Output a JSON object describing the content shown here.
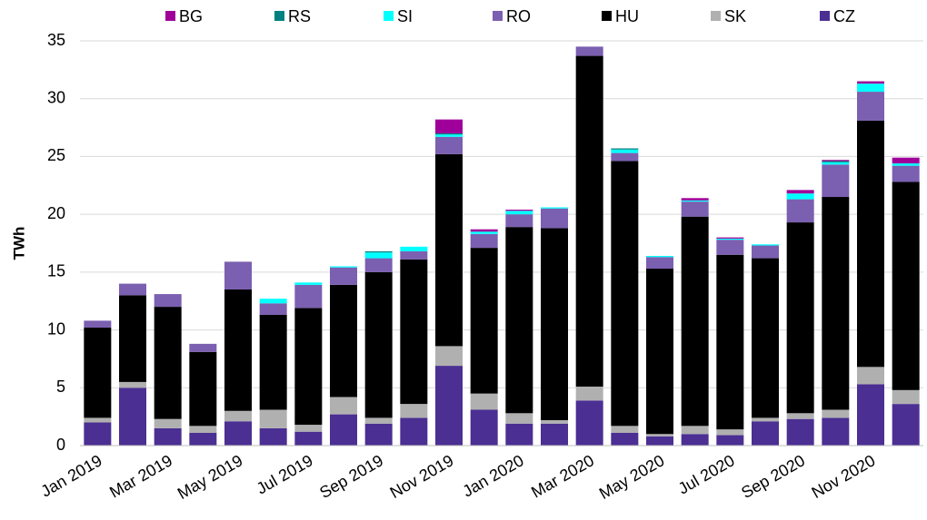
{
  "chart_data": {
    "type": "stacked_bar",
    "y_label": "TWh",
    "categories": [
      "Jan 2019",
      null,
      "Mar 2019",
      null,
      "May 2019",
      null,
      "Jul 2019",
      null,
      "Sep 2019",
      null,
      "Nov 2019",
      null,
      "Jan 2020",
      null,
      "Mar 2020",
      null,
      "May 2020",
      null,
      "Jul 2020",
      null,
      "Sep 2020",
      null,
      "Nov 2020",
      null
    ],
    "series": [
      {
        "name": "BG",
        "color": "#a0009a",
        "values": [
          0,
          0,
          0,
          0,
          0,
          0,
          0,
          0,
          0,
          0,
          1.2,
          0.2,
          0.1,
          0,
          0,
          0,
          0,
          0.2,
          0.1,
          0,
          0.3,
          0.1,
          0.2,
          0.5
        ]
      },
      {
        "name": "RS",
        "color": "#008080",
        "values": [
          0,
          0,
          0,
          0,
          0,
          0,
          0,
          0,
          0.1,
          0,
          0.1,
          0,
          0,
          0,
          0,
          0.1,
          0,
          0,
          0,
          0,
          0,
          0.1,
          0,
          0
        ]
      },
      {
        "name": "SI",
        "color": "#00ffff",
        "values": [
          0,
          0,
          0,
          0,
          0,
          0.4,
          0.2,
          0.1,
          0.5,
          0.4,
          0.2,
          0.2,
          0.3,
          0.1,
          0,
          0.3,
          0.1,
          0.1,
          0.1,
          0.1,
          0.5,
          0.2,
          0.7,
          0.2
        ]
      },
      {
        "name": "RO",
        "color": "#7b5fb0",
        "values": [
          0.6,
          1.0,
          1.1,
          0.7,
          2.4,
          1.0,
          2.0,
          1.5,
          1.2,
          0.7,
          1.5,
          1.2,
          1.1,
          1.7,
          0.8,
          0.7,
          1.0,
          1.3,
          1.3,
          1.1,
          2.0,
          2.8,
          2.5,
          1.4
        ]
      },
      {
        "name": "HU",
        "color": "#000000",
        "values": [
          7.8,
          7.5,
          9.7,
          6.4,
          10.5,
          8.2,
          10.1,
          9.7,
          12.6,
          12.5,
          16.6,
          12.6,
          16.1,
          16.6,
          28.6,
          22.9,
          14.3,
          18.1,
          15.1,
          13.8,
          16.5,
          18.4,
          21.3,
          18.0
        ]
      },
      {
        "name": "SK",
        "color": "#b0b0b0",
        "values": [
          0.4,
          0.5,
          0.8,
          0.6,
          0.9,
          1.6,
          0.6,
          1.5,
          0.5,
          1.2,
          1.7,
          1.4,
          0.9,
          0.3,
          1.2,
          0.6,
          0.2,
          0.7,
          0.5,
          0.3,
          0.5,
          0.7,
          1.5,
          1.2
        ]
      },
      {
        "name": "CZ",
        "color": "#4b2f93",
        "values": [
          2.0,
          5.0,
          1.5,
          1.1,
          2.1,
          1.5,
          1.2,
          2.7,
          1.9,
          2.4,
          6.9,
          3.1,
          1.9,
          1.9,
          3.9,
          1.1,
          0.8,
          1.0,
          0.9,
          2.1,
          2.3,
          2.4,
          5.3,
          3.6
        ]
      }
    ],
    "ylim": [
      0,
      35
    ],
    "yticks": [
      0,
      5,
      10,
      15,
      20,
      25,
      30,
      35
    ],
    "grid": true,
    "legend": "top"
  }
}
